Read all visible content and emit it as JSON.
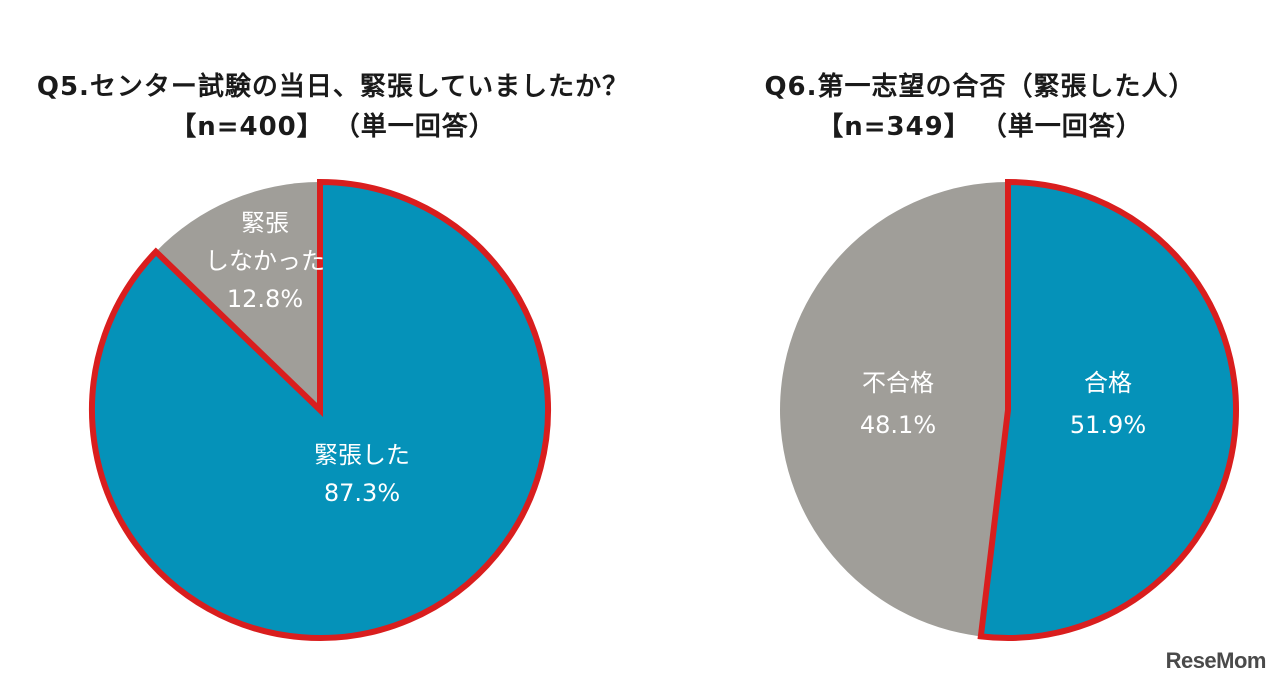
{
  "chart_data": [
    {
      "type": "pie",
      "title": "Q5.センター試験の当日、緊張していましたか？",
      "subtitle": "【n=400】 （単一回答）",
      "slices": [
        {
          "label": "緊張した",
          "value": 87.3,
          "value_label": "87.3%",
          "color": "#0592b9"
        },
        {
          "label_lines": [
            "緊張",
            "しなかった"
          ],
          "value": 12.8,
          "value_label": "12.8%",
          "color": "#a09e99"
        }
      ],
      "highlight_slice": 0,
      "highlight_color": "#d91e1e"
    },
    {
      "type": "pie",
      "title": "Q6.第一志望の合否（緊張した人）",
      "subtitle": "【n=349】 （単一回答）",
      "slices": [
        {
          "label": "合格",
          "value": 51.9,
          "value_label": "51.9%",
          "color": "#0592b9"
        },
        {
          "label": "不合格",
          "value": 48.1,
          "value_label": "48.1%",
          "color": "#a09e99"
        }
      ],
      "highlight_slice": 0,
      "highlight_color": "#d91e1e"
    }
  ],
  "watermark": "ReseMom"
}
